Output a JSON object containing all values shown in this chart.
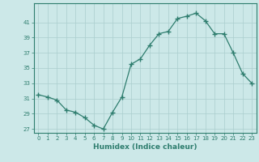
{
  "x": [
    0,
    1,
    2,
    3,
    4,
    5,
    6,
    7,
    8,
    9,
    10,
    11,
    12,
    13,
    14,
    15,
    16,
    17,
    18,
    19,
    20,
    21,
    22,
    23
  ],
  "y": [
    31.5,
    31.2,
    30.8,
    29.5,
    29.2,
    28.5,
    27.5,
    27.0,
    29.2,
    31.2,
    35.5,
    36.2,
    38.0,
    39.5,
    39.8,
    41.5,
    41.8,
    42.2,
    41.2,
    39.5,
    39.5,
    37.0,
    34.3,
    33.0
  ],
  "xlabel": "Humidex (Indice chaleur)",
  "xlim": [
    -0.5,
    23.5
  ],
  "ylim": [
    26.5,
    43.5
  ],
  "yticks": [
    27,
    29,
    31,
    33,
    35,
    37,
    39,
    41
  ],
  "xticks": [
    0,
    1,
    2,
    3,
    4,
    5,
    6,
    7,
    8,
    9,
    10,
    11,
    12,
    13,
    14,
    15,
    16,
    17,
    18,
    19,
    20,
    21,
    22,
    23
  ],
  "line_color": "#2e7d6e",
  "marker": "+",
  "bg_color": "#cce8e8",
  "grid_color": "#aacece",
  "axis_color": "#2e7d6e",
  "tick_color": "#2e7d6e",
  "label_color": "#2e7d6e"
}
